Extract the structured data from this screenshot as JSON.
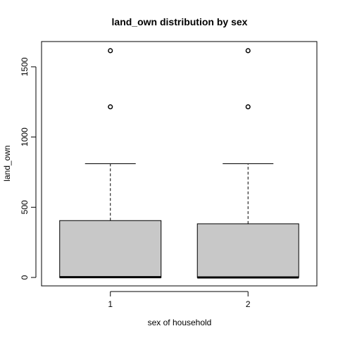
{
  "chart_data": {
    "type": "boxplot",
    "title": "land_own distribution by sex",
    "xlabel": "sex of household",
    "ylabel": "land_own",
    "categories": [
      "1",
      "2"
    ],
    "y_ticks": [
      0,
      500,
      1000,
      1500
    ],
    "ylim": [
      -60,
      1680
    ],
    "grid": false,
    "legend": "none",
    "box_fill": "#c8c8c8",
    "boxes": [
      {
        "name": "1",
        "q1": 0,
        "median": 2,
        "q3": 405,
        "whisker_low": 0,
        "whisker_high": 810,
        "outliers": [
          1215,
          1615
        ]
      },
      {
        "name": "2",
        "q1": 0,
        "median": 0,
        "q3": 382,
        "whisker_low": 0,
        "whisker_high": 810,
        "outliers": [
          1215,
          1615
        ]
      }
    ]
  }
}
